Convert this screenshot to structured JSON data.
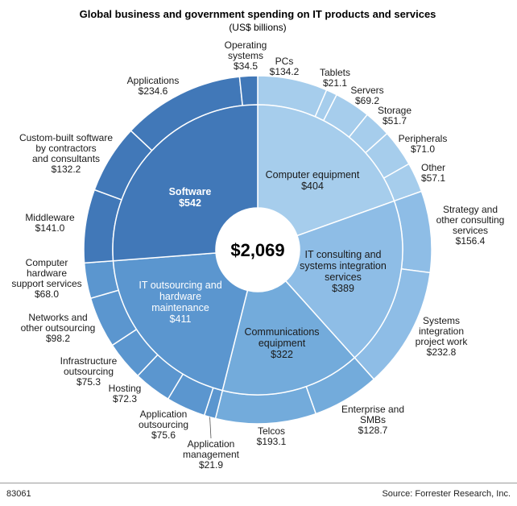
{
  "chart_data": {
    "type": "sunburst",
    "title": "Global business and government spending on IT products and services",
    "subtitle": "(US$ billions)",
    "total": "$2,069",
    "categories": [
      {
        "name": "Computer equipment",
        "value": 404,
        "value_label": "$404",
        "color": "#a6cdec",
        "children": [
          {
            "name": "PCs",
            "value": 134.2,
            "value_label": "$134.2"
          },
          {
            "name": "Tablets",
            "value": 21.1,
            "value_label": "$21.1"
          },
          {
            "name": "Servers",
            "value": 69.2,
            "value_label": "$69.2"
          },
          {
            "name": "Storage",
            "value": 51.7,
            "value_label": "$51.7"
          },
          {
            "name": "Peripherals",
            "value": 71.0,
            "value_label": "$71.0"
          },
          {
            "name": "Other",
            "value": 57.1,
            "value_label": "$57.1"
          }
        ]
      },
      {
        "name": "IT consulting and systems integration services",
        "value": 389,
        "value_label": "$389",
        "color": "#8ebde6",
        "children": [
          {
            "name": "Strategy and other consulting services",
            "value": 156.4,
            "value_label": "$156.4"
          },
          {
            "name": "Systems integration project work",
            "value": 232.8,
            "value_label": "$232.8"
          }
        ]
      },
      {
        "name": "Communications equipment",
        "value": 322,
        "value_label": "$322",
        "color": "#73abdb",
        "children": [
          {
            "name": "Enterprise and SMBs",
            "value": 128.7,
            "value_label": "$128.7"
          },
          {
            "name": "Telcos",
            "value": 193.1,
            "value_label": "$193.1"
          }
        ]
      },
      {
        "name": "IT outsourcing and hardware maintenance",
        "value": 411,
        "value_label": "$411",
        "color": "#5b96cf",
        "children": [
          {
            "name": "Application management",
            "value": 21.9,
            "value_label": "$21.9"
          },
          {
            "name": "Application outsourcing",
            "value": 75.6,
            "value_label": "$75.6"
          },
          {
            "name": "Hosting",
            "value": 72.3,
            "value_label": "$72.3"
          },
          {
            "name": "Infrastructure outsourcing",
            "value": 75.3,
            "value_label": "$75.3"
          },
          {
            "name": "Networks and other outsourcing",
            "value": 98.2,
            "value_label": "$98.2"
          },
          {
            "name": "Computer hardware support services",
            "value": 68.0,
            "value_label": "$68.0"
          }
        ]
      },
      {
        "name": "Software",
        "value": 542,
        "value_label": "$542",
        "color": "#4178b8",
        "children": [
          {
            "name": "Middleware",
            "value": 141.0,
            "value_label": "$141.0"
          },
          {
            "name": "Custom-built software by contractors and consultants",
            "value": 132.2,
            "value_label": "$132.2"
          },
          {
            "name": "Applications",
            "value": 234.6,
            "value_label": "$234.6"
          },
          {
            "name": "Operating systems",
            "value": 34.5,
            "value_label": "$34.5"
          }
        ]
      }
    ]
  },
  "footer": {
    "figure_id": "83061",
    "source": "Source: Forrester Research, Inc."
  }
}
